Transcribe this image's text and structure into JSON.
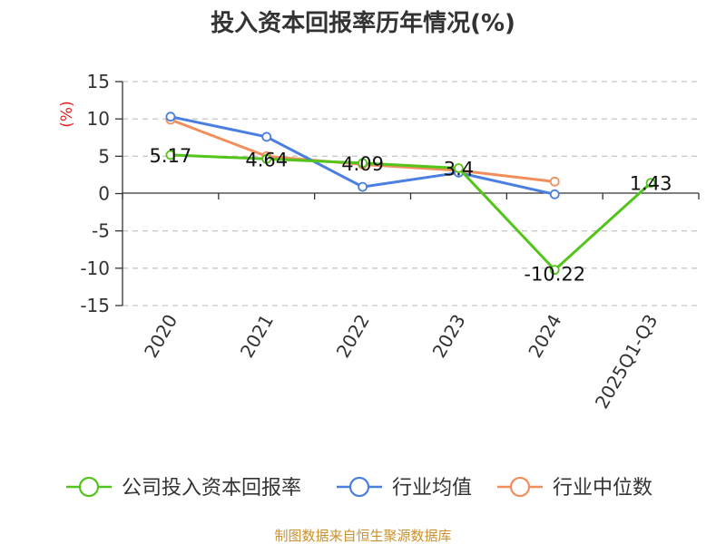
{
  "chart_data": {
    "type": "line",
    "title": "投入资本回报率历年情况(%)",
    "ylabel": "(%)",
    "categories": [
      "2020",
      "2021",
      "2022",
      "2023",
      "2024",
      "2025Q1-Q3"
    ],
    "ylim": [
      -15,
      15
    ],
    "yticks": [
      15,
      10,
      5,
      0,
      -5,
      -10,
      -15
    ],
    "yticks_text": [
      "15",
      "10",
      "5",
      "0",
      "-5",
      "-10",
      "-15"
    ],
    "grid": true,
    "legend_position": "bottom",
    "series": [
      {
        "name": "公司投入资本回报率",
        "color": "#52c41a",
        "values": [
          5.17,
          4.64,
          4.09,
          3.4,
          -10.22,
          1.43
        ],
        "labels": [
          "5.17",
          "4.64",
          "4.09",
          "3.4",
          "-10.22",
          "1.43"
        ]
      },
      {
        "name": "行业均值",
        "color": "#4a7fe0",
        "values": [
          10.3,
          7.6,
          0.9,
          2.8,
          -0.1,
          null
        ]
      },
      {
        "name": "行业中位数",
        "color": "#f28e5b",
        "values": [
          9.9,
          5.0,
          3.9,
          3.1,
          1.6,
          null
        ]
      }
    ]
  },
  "footer": {
    "source": "制图数据来自恒生聚源数据库",
    "source_color": "#c8912e"
  },
  "colors": {
    "unit_color": "#e02020"
  }
}
